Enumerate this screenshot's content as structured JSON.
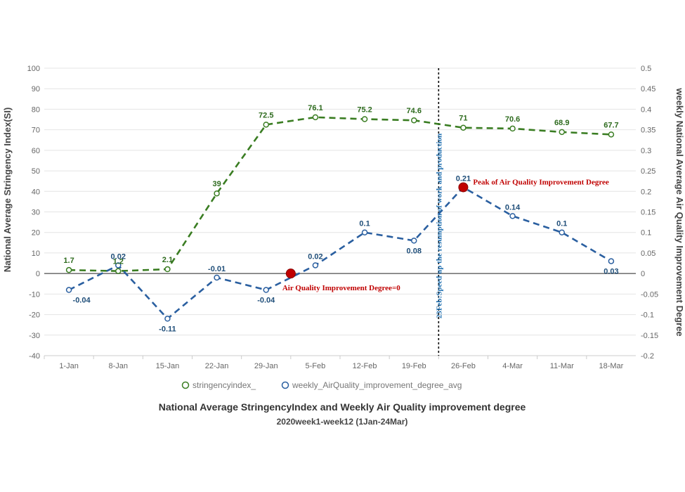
{
  "chart_data": {
    "type": "line",
    "title": "National Average StringencyIndex and Weekly Air Quality improvement degree",
    "subtitle": "2020week1-week12 (1Jan-24Mar)",
    "categories": [
      "1-Jan",
      "8-Jan",
      "15-Jan",
      "22-Jan",
      "29-Jan",
      "5-Feb",
      "12-Feb",
      "19-Feb",
      "26-Feb",
      "4-Mar",
      "11-Mar",
      "18-Mar"
    ],
    "ylabel_left": "National Average Stringency Index(SI)",
    "ylabel_right": "weekly National Average Air Quality Improvement Degree",
    "ylim_left": [
      -40,
      100
    ],
    "ylim_right": [
      -0.2,
      0.5
    ],
    "yticks_left": [
      "100",
      "90",
      "80",
      "70",
      "60",
      "50",
      "40",
      "30",
      "20",
      "10",
      "0",
      "-10",
      "-20",
      "-30",
      "-40"
    ],
    "yticks_right": [
      "0.5",
      "0.45",
      "0.4",
      "0.35",
      "0.3",
      "0.25",
      "0.2",
      "0.15",
      "0.1",
      "0.05",
      "0",
      "-0.05",
      "-0.1",
      "-0.15",
      "-0.2"
    ],
    "series": [
      {
        "name": "stringencyindex_",
        "axis": "left",
        "color": "#3a7d22",
        "x": [
          0,
          1,
          2,
          3,
          4,
          5,
          6,
          7,
          8,
          9,
          10,
          11
        ],
        "values": [
          1.7,
          1.2,
          2.1,
          39,
          72.5,
          76.1,
          75.2,
          74.6,
          71,
          70.6,
          68.9,
          67.7
        ],
        "labels": [
          "1.7",
          "1.2",
          "2.1",
          "39",
          "72.5",
          "76.1",
          "75.2",
          "74.6",
          "71",
          "70.6",
          "68.9",
          "67.7"
        ]
      },
      {
        "name": "weekly_AirQuality_improvement_degree_avg",
        "axis": "right",
        "color": "#2a5fa0",
        "x": [
          0,
          1,
          2,
          3,
          4,
          5,
          6,
          7,
          8,
          9,
          10,
          11
        ],
        "values": [
          -0.04,
          0.02,
          -0.11,
          -0.01,
          -0.04,
          0.02,
          0.1,
          0.08,
          0.21,
          0.14,
          0.1,
          0.03
        ],
        "labels": [
          "-0.04",
          "0.02",
          "-0.11",
          "-0.01",
          "-0.04",
          "0.02",
          "0.1",
          "0.08",
          "0.21",
          "0.14",
          "0.1",
          "0.03"
        ]
      }
    ],
    "highlights": [
      {
        "x": 4.5,
        "value": 0,
        "label": "Air Quality Improvement Degree=0",
        "color": "#c00000"
      },
      {
        "x": 8,
        "value": 0.21,
        "label": "Peak of Air Quality Improvement Degree",
        "color": "#c00000"
      }
    ],
    "vline": {
      "x": 7.5,
      "label": "23Feb:Speed up the resumption of work and production"
    }
  }
}
